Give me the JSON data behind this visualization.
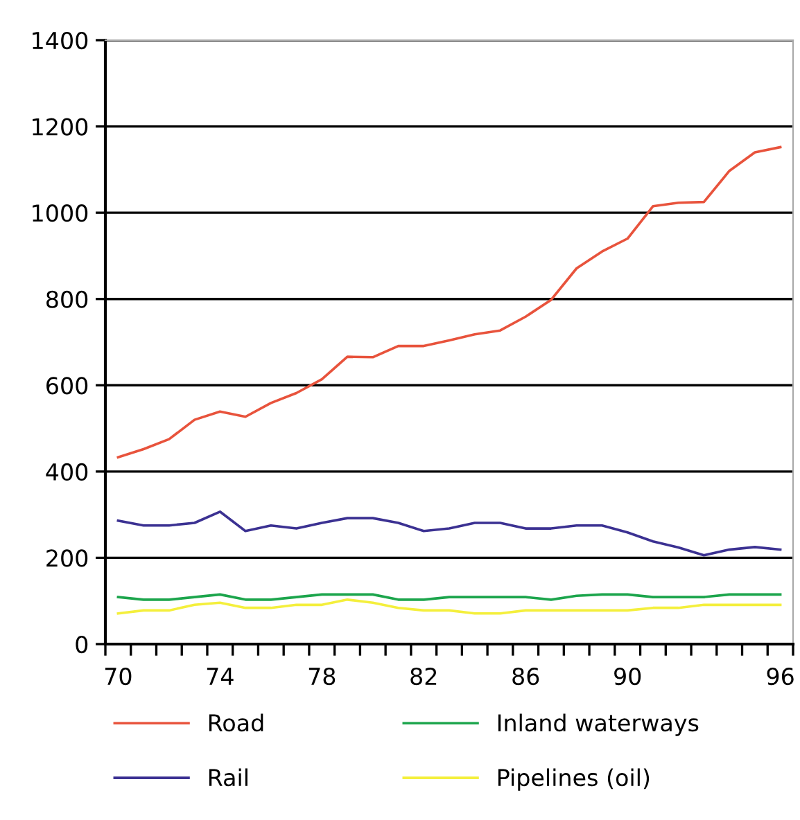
{
  "chart_data": {
    "type": "line",
    "categories": [
      "70",
      null,
      null,
      null,
      "74",
      null,
      null,
      null,
      "78",
      null,
      null,
      null,
      "82",
      null,
      null,
      null,
      "86",
      null,
      null,
      null,
      "90",
      null,
      null,
      null,
      null,
      null,
      "96"
    ],
    "series": [
      {
        "name": "Road",
        "color": "#e8533c",
        "values": [
          433,
          452,
          475,
          520,
          539,
          527,
          559,
          582,
          614,
          666,
          665,
          691,
          691,
          704,
          718,
          727,
          759,
          798,
          871,
          910,
          940,
          1015,
          1023,
          1025,
          1097,
          1140,
          1152
        ]
      },
      {
        "name": "Rail",
        "color": "#3b3192",
        "values": [
          286,
          275,
          275,
          281,
          307,
          262,
          275,
          268,
          281,
          292,
          292,
          281,
          262,
          268,
          281,
          281,
          268,
          268,
          275,
          275,
          259,
          238,
          224,
          206,
          219,
          225,
          219
        ]
      },
      {
        "name": "Inland waterways",
        "color": "#1ca54c",
        "values": [
          109,
          103,
          103,
          109,
          115,
          103,
          103,
          109,
          115,
          115,
          115,
          103,
          103,
          109,
          109,
          109,
          109,
          103,
          112,
          115,
          115,
          109,
          109,
          109,
          115,
          115,
          115
        ]
      },
      {
        "name": "Pipelines (oil)",
        "color": "#f4ef3c",
        "values": [
          71,
          78,
          78,
          91,
          96,
          84,
          84,
          91,
          91,
          103,
          96,
          84,
          78,
          78,
          71,
          71,
          78,
          78,
          78,
          78,
          78,
          84,
          84,
          91,
          91,
          91,
          91
        ]
      }
    ],
    "ylim": [
      0,
      1400
    ],
    "yticks": [
      0,
      200,
      400,
      600,
      800,
      1000,
      1200,
      1400
    ],
    "grid": "y",
    "legend": "bottom",
    "marker": "none",
    "line_style": "solid"
  }
}
